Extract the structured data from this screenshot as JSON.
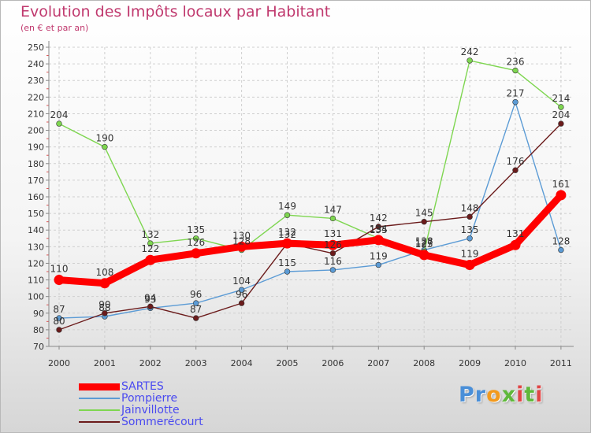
{
  "header": {
    "title": "Evolution des Impôts locaux par Habitant",
    "subtitle": "(en € et par an)"
  },
  "chart_data": {
    "type": "line",
    "title": "Evolution des Impôts locaux par Habitant",
    "subtitle": "(en € et par an)",
    "xlabel": "",
    "ylabel": "",
    "ylim": [
      70,
      250
    ],
    "yticks": [
      70,
      80,
      90,
      100,
      110,
      120,
      130,
      140,
      150,
      160,
      170,
      180,
      190,
      200,
      210,
      220,
      230,
      240,
      250
    ],
    "grid": true,
    "legend": "bottom-left",
    "categories": [
      "2000",
      "2001",
      "2002",
      "2003",
      "2004",
      "2005",
      "2006",
      "2007",
      "2008",
      "2009",
      "2010",
      "2011"
    ],
    "series": [
      {
        "name": "SARTES",
        "color": "#ff0000",
        "values": [
          110,
          108,
          122,
          126,
          130,
          132,
          131,
          134,
          125,
          119,
          131,
          161
        ]
      },
      {
        "name": "Pompierre",
        "color": "#5b9bd5",
        "values": [
          87,
          88,
          93,
          96,
          104,
          115,
          116,
          119,
          128,
          135,
          217,
          128
        ]
      },
      {
        "name": "Jainvillotte",
        "color": "#7ed650",
        "values": [
          204,
          190,
          132,
          135,
          128,
          149,
          147,
          135,
          127,
          242,
          236,
          214
        ]
      },
      {
        "name": "Sommerécourt",
        "color": "#6b1b1b",
        "values": [
          80,
          90,
          94,
          87,
          96,
          132,
          126,
          142,
          145,
          148,
          176,
          204
        ]
      }
    ]
  },
  "legend": {
    "items": [
      {
        "name": "SARTES",
        "color": "#ff0000",
        "thickness": 9
      },
      {
        "name": "Pompierre",
        "color": "#5b9bd5",
        "thickness": 2
      },
      {
        "name": "Jainvillotte",
        "color": "#7ed650",
        "thickness": 2
      },
      {
        "name": "Sommerécourt",
        "color": "#6b1b1b",
        "thickness": 2
      }
    ]
  },
  "logo": {
    "letters": [
      {
        "char": "P",
        "color": "#4a8fd8"
      },
      {
        "char": "r",
        "color": "#4a8fd8"
      },
      {
        "char": "o",
        "color": "#f29a1e"
      },
      {
        "char": "x",
        "color": "#5fb83a"
      },
      {
        "char": "i",
        "color": "#e04545"
      },
      {
        "char": "t",
        "color": "#5fb83a"
      },
      {
        "char": "i",
        "color": "#e04545"
      }
    ]
  }
}
